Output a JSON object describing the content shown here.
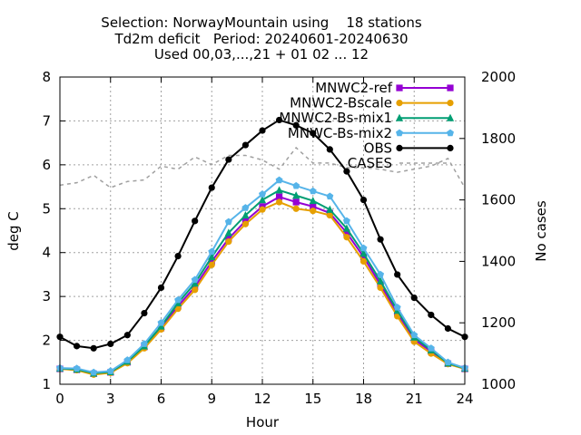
{
  "chart_data": {
    "type": "line",
    "title_lines": [
      "Selection: NorwayMountain using    18 stations",
      "Td2m deficit   Period: 20240601-20240630",
      "Used 00,03,...,21 + 01 02 ... 12"
    ],
    "xlabel": "Hour",
    "ylabel": "deg C",
    "y2label": "No cases",
    "xlim": [
      0,
      24
    ],
    "ylim": [
      1,
      8
    ],
    "y2lim": [
      1000,
      2000
    ],
    "x_ticks": [
      0,
      3,
      6,
      9,
      12,
      15,
      18,
      21,
      24
    ],
    "y_ticks": [
      1,
      2,
      3,
      4,
      5,
      6,
      7,
      8
    ],
    "y2_ticks": [
      1000,
      1200,
      1400,
      1600,
      1800,
      2000
    ],
    "grid": true,
    "legend_position": "top-right",
    "x": [
      0,
      1,
      2,
      3,
      4,
      5,
      6,
      7,
      8,
      9,
      10,
      11,
      12,
      13,
      14,
      15,
      16,
      17,
      18,
      19,
      20,
      21,
      22,
      23,
      24
    ],
    "series": [
      {
        "name": "MNWC2-ref",
        "color": "#9400d3",
        "marker": "filled-square",
        "values": [
          1.35,
          1.33,
          1.24,
          1.27,
          1.5,
          1.85,
          2.28,
          2.78,
          3.22,
          3.8,
          4.32,
          4.72,
          5.05,
          5.27,
          5.15,
          5.05,
          4.9,
          4.45,
          3.9,
          3.27,
          2.62,
          2.02,
          1.75,
          1.47,
          1.35
        ],
        "axis": "y1"
      },
      {
        "name": "MNWC2-Bscale",
        "color": "#e69f00",
        "marker": "filled-circle",
        "values": [
          1.35,
          1.32,
          1.22,
          1.26,
          1.48,
          1.82,
          2.25,
          2.72,
          3.15,
          3.72,
          4.25,
          4.65,
          4.98,
          5.15,
          5.0,
          4.95,
          4.85,
          4.35,
          3.8,
          3.2,
          2.55,
          1.97,
          1.7,
          1.46,
          1.35
        ],
        "axis": "y1"
      },
      {
        "name": "MNWC2-Bs-mix1",
        "color": "#009e73",
        "marker": "filled-triangle",
        "values": [
          1.36,
          1.34,
          1.25,
          1.28,
          1.52,
          1.87,
          2.32,
          2.85,
          3.3,
          3.9,
          4.45,
          4.85,
          5.2,
          5.42,
          5.3,
          5.18,
          4.98,
          4.55,
          3.98,
          3.35,
          2.68,
          2.07,
          1.78,
          1.48,
          1.36
        ],
        "axis": "y1"
      },
      {
        "name": "MNWC-Bs-mix2",
        "color": "#56b4e9",
        "marker": "filled-pentagon",
        "values": [
          1.37,
          1.36,
          1.27,
          1.3,
          1.55,
          1.92,
          2.4,
          2.92,
          3.38,
          4.02,
          4.7,
          5.02,
          5.33,
          5.65,
          5.52,
          5.4,
          5.28,
          4.72,
          4.1,
          3.5,
          2.75,
          2.12,
          1.82,
          1.5,
          1.37
        ],
        "axis": "y1"
      },
      {
        "name": "OBS",
        "color": "#000000",
        "marker": "filled-circle",
        "values": [
          2.08,
          1.87,
          1.82,
          1.92,
          2.12,
          2.62,
          3.2,
          3.92,
          4.72,
          5.48,
          6.12,
          6.45,
          6.78,
          7.02,
          6.9,
          6.72,
          6.35,
          5.85,
          5.2,
          4.3,
          3.5,
          2.97,
          2.58,
          2.27,
          2.08
        ],
        "axis": "y1"
      },
      {
        "name": "CASES",
        "color": "#a0a0a0",
        "style": "dashed",
        "values": [
          1648,
          1656,
          1680,
          1640,
          1660,
          1665,
          1710,
          1700,
          1740,
          1715,
          1745,
          1745,
          1730,
          1700,
          1770,
          1720,
          1720,
          1705,
          1705,
          1700,
          1690,
          1700,
          1710,
          1735,
          1640
        ],
        "axis": "y2"
      }
    ]
  }
}
